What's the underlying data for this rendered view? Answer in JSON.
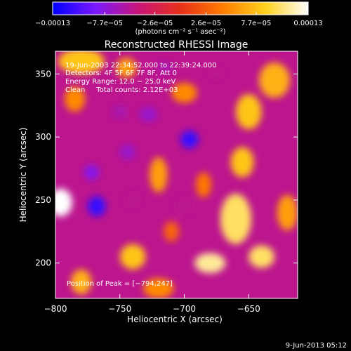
{
  "chart_data": {
    "type": "heatmap",
    "title": "Reconstructed RHESSI Image",
    "xlabel": "Heliocentric X (arcsec)",
    "ylabel": "Heliocentric Y (arcsec)",
    "xlim": [
      -800,
      -612
    ],
    "ylim": [
      172,
      368
    ],
    "x_ticks": [
      -800,
      -750,
      -700,
      -650
    ],
    "x_tick_labels": [
      "−800",
      "−750",
      "−700",
      "−650"
    ],
    "y_ticks": [
      200,
      250,
      300,
      350
    ],
    "y_tick_labels": [
      "200",
      "250",
      "300",
      "350"
    ],
    "colorbar": {
      "range": [
        -0.00013,
        0.00013
      ],
      "tick_values": [
        -0.00013,
        -7.7e-05,
        -2.6e-05,
        2.6e-05,
        7.7e-05,
        0.00013
      ],
      "tick_labels": [
        "−0.00013",
        "−7.7e−05",
        "−2.6e−05",
        "2.6e−05",
        "7.7e−05",
        "0.00013"
      ],
      "unit_label": "(photons cm⁻² s⁻¹ asec⁻²)",
      "colors": [
        "#0000ff",
        "#7a18ff",
        "#c8147a",
        "#e8301a",
        "#ff7d00",
        "#ffd21e",
        "#ffffff"
      ]
    },
    "annotations": {
      "time_range": "19-Jun-2003 22:34:52.000 to 22:39:24.000",
      "detectors": "Detectors: 4F 5F 6F 7F 8F, Att 0",
      "energy_range": "Energy Range: 12.0 − 25.0 keV",
      "method_counts": "Clean     Total counts: 2.12E+03",
      "peak_position": "Position of Peak = [−794,247]"
    },
    "sources": [
      {
        "name": "peak-source",
        "x": -796,
        "y": 248,
        "value": 0.00013,
        "rx": 9,
        "ry": 11
      },
      {
        "name": "source",
        "x": -660,
        "y": 235,
        "value": 0.0001,
        "rx": 12,
        "ry": 20
      },
      {
        "name": "source",
        "x": -650,
        "y": 320,
        "value": 8e-05,
        "rx": 10,
        "ry": 14
      },
      {
        "name": "source",
        "x": -655,
        "y": 280,
        "value": 8e-05,
        "rx": 9,
        "ry": 12
      },
      {
        "name": "source",
        "x": -630,
        "y": 345,
        "value": 7e-05,
        "rx": 12,
        "ry": 14
      },
      {
        "name": "source",
        "x": -680,
        "y": 200,
        "value": 0.00011,
        "rx": 12,
        "ry": 8
      },
      {
        "name": "source",
        "x": -640,
        "y": 205,
        "value": 0.0001,
        "rx": 10,
        "ry": 9
      },
      {
        "name": "source",
        "x": -620,
        "y": 240,
        "value": 6e-05,
        "rx": 8,
        "ry": 14
      },
      {
        "name": "source",
        "x": -740,
        "y": 205,
        "value": 8e-05,
        "rx": 10,
        "ry": 10
      },
      {
        "name": "source",
        "x": -780,
        "y": 360,
        "value": 8e-05,
        "rx": 18,
        "ry": 10
      },
      {
        "name": "source",
        "x": -745,
        "y": 355,
        "value": 6e-05,
        "rx": 8,
        "ry": 8
      },
      {
        "name": "source",
        "x": -785,
        "y": 330,
        "value": 5e-05,
        "rx": 8,
        "ry": 10
      },
      {
        "name": "source",
        "x": -780,
        "y": 185,
        "value": 7e-05,
        "rx": 8,
        "ry": 10
      },
      {
        "name": "source",
        "x": -720,
        "y": 270,
        "value": 6e-05,
        "rx": 7,
        "ry": 14
      },
      {
        "name": "source",
        "x": -700,
        "y": 335,
        "value": 5e-05,
        "rx": 10,
        "ry": 8
      },
      {
        "name": "source",
        "x": -720,
        "y": 180,
        "value": 5e-05,
        "rx": 12,
        "ry": 8
      },
      {
        "name": "source",
        "x": -685,
        "y": 262,
        "value": 4e-05,
        "rx": 6,
        "ry": 10
      },
      {
        "name": "source",
        "x": -710,
        "y": 225,
        "value": 3e-05,
        "rx": 6,
        "ry": 8
      },
      {
        "name": "negative-source",
        "x": -696,
        "y": 298,
        "value": -0.00011,
        "rx": 7,
        "ry": 7
      },
      {
        "name": "negative-source",
        "x": -768,
        "y": 245,
        "value": -0.00011,
        "rx": 7,
        "ry": 8
      },
      {
        "name": "negative-source",
        "x": -772,
        "y": 272,
        "value": -8e-05,
        "rx": 6,
        "ry": 6
      },
      {
        "name": "negative-source",
        "x": -744,
        "y": 288,
        "value": -7e-05,
        "rx": 6,
        "ry": 6
      },
      {
        "name": "negative-source",
        "x": -728,
        "y": 318,
        "value": -7e-05,
        "rx": 7,
        "ry": 6
      },
      {
        "name": "negative-source",
        "x": -750,
        "y": 320,
        "value": -6e-05,
        "rx": 6,
        "ry": 6
      },
      {
        "name": "negative-source",
        "x": -675,
        "y": 350,
        "value": -5e-05,
        "rx": 5,
        "ry": 5
      },
      {
        "name": "negative-source",
        "x": -715,
        "y": 355,
        "value": -6e-05,
        "rx": 6,
        "ry": 5
      },
      {
        "name": "negative-source",
        "x": -700,
        "y": 245,
        "value": -5e-05,
        "rx": 7,
        "ry": 7
      },
      {
        "name": "negative-source",
        "x": -740,
        "y": 250,
        "value": -5e-05,
        "rx": 6,
        "ry": 6
      }
    ],
    "background_value": -5e-05
  },
  "footer": {
    "date": "9-Jun-2013 05:12"
  }
}
